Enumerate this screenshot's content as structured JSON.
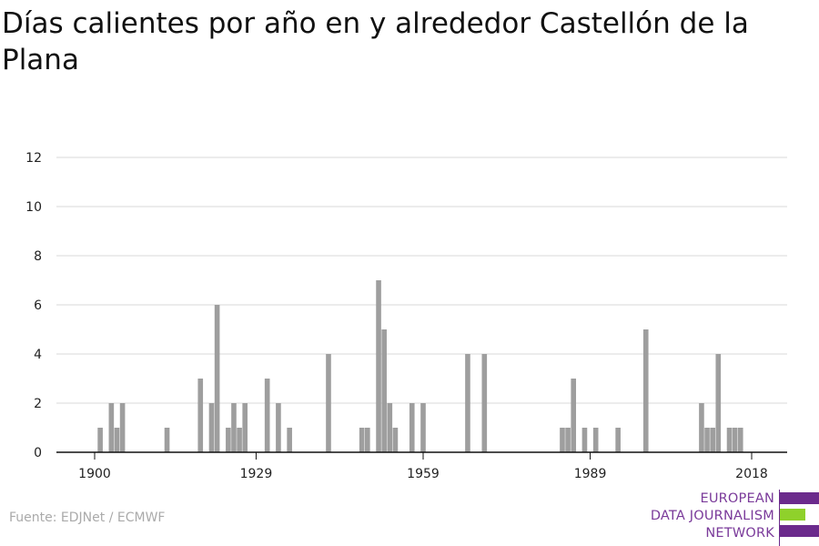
{
  "title": "Días calientes por año en y alrededor Castellón de la Plana",
  "source": "Fuente: EDJNet / ECMWF",
  "logo": {
    "line1": "EUROPEAN",
    "line2": "DATA JOURNALISM",
    "line3": "NETWORK",
    "colors": {
      "text": "#7a3a9a",
      "purple": "#6b2a8c",
      "green": "#8fd12b"
    }
  },
  "colors": {
    "bar": "#9e9e9e",
    "grid": "#d9d9d9",
    "axis": "#111111"
  },
  "chart_data": {
    "type": "bar",
    "title": "Días calientes por año en y alrededor Castellón de la Plana",
    "xlabel": "",
    "ylabel": "",
    "xlim": [
      1898,
      2021
    ],
    "ylim": [
      0,
      12
    ],
    "yticks": [
      0,
      2,
      4,
      6,
      8,
      10,
      12
    ],
    "xticks": [
      1900,
      1929,
      1959,
      1989,
      2018
    ],
    "grid": true,
    "series": [
      {
        "x": [
          1901,
          1902,
          1903,
          1904,
          1905,
          1906,
          1907,
          1908,
          1909,
          1910,
          1911,
          1912,
          1913,
          1914,
          1915,
          1916,
          1917,
          1918,
          1919,
          1920,
          1921,
          1922,
          1923,
          1924,
          1925,
          1926,
          1927,
          1928,
          1929,
          1930,
          1931,
          1932,
          1933,
          1934,
          1935,
          1936,
          1937,
          1938,
          1939,
          1940,
          1941,
          1942,
          1943,
          1944,
          1945,
          1946,
          1947,
          1948,
          1949,
          1950,
          1951,
          1952,
          1953,
          1954,
          1955,
          1956,
          1957,
          1958,
          1959,
          1960,
          1961,
          1962,
          1963,
          1964,
          1965,
          1966,
          1967,
          1968,
          1969,
          1970,
          1971,
          1972,
          1973,
          1974,
          1975,
          1976,
          1977,
          1978,
          1979,
          1980,
          1981,
          1982,
          1983,
          1984,
          1985,
          1986,
          1987,
          1988,
          1989,
          1990,
          1991,
          1992,
          1993,
          1994,
          1995,
          1996,
          1997,
          1998,
          1999,
          2000,
          2001,
          2002,
          2003,
          2004,
          2005,
          2006,
          2007,
          2008,
          2009,
          2010,
          2011,
          2012,
          2013,
          2014,
          2015,
          2016,
          2017,
          2018
        ],
        "values": [
          1,
          0,
          2,
          1,
          2,
          0,
          0,
          0,
          0,
          0,
          0,
          0,
          1,
          0,
          0,
          0,
          0,
          0,
          3,
          0,
          2,
          6,
          0,
          1,
          2,
          1,
          2,
          0,
          0,
          0,
          3,
          0,
          2,
          0,
          1,
          0,
          0,
          0,
          0,
          0,
          0,
          4,
          0,
          0,
          0,
          0,
          0,
          1,
          1,
          0,
          7,
          5,
          2,
          1,
          0,
          0,
          2,
          0,
          2,
          0,
          0,
          0,
          0,
          0,
          0,
          0,
          4,
          0,
          0,
          4,
          0,
          0,
          0,
          0,
          0,
          0,
          0,
          0,
          0,
          0,
          0,
          0,
          0,
          1,
          1,
          3,
          0,
          1,
          0,
          1,
          0,
          0,
          0,
          1,
          0,
          0,
          0,
          0,
          5,
          0,
          0,
          0,
          0,
          0,
          0,
          0,
          0,
          0,
          2,
          1,
          1,
          4,
          0,
          1,
          1,
          1,
          0,
          0
        ]
      }
    ]
  }
}
